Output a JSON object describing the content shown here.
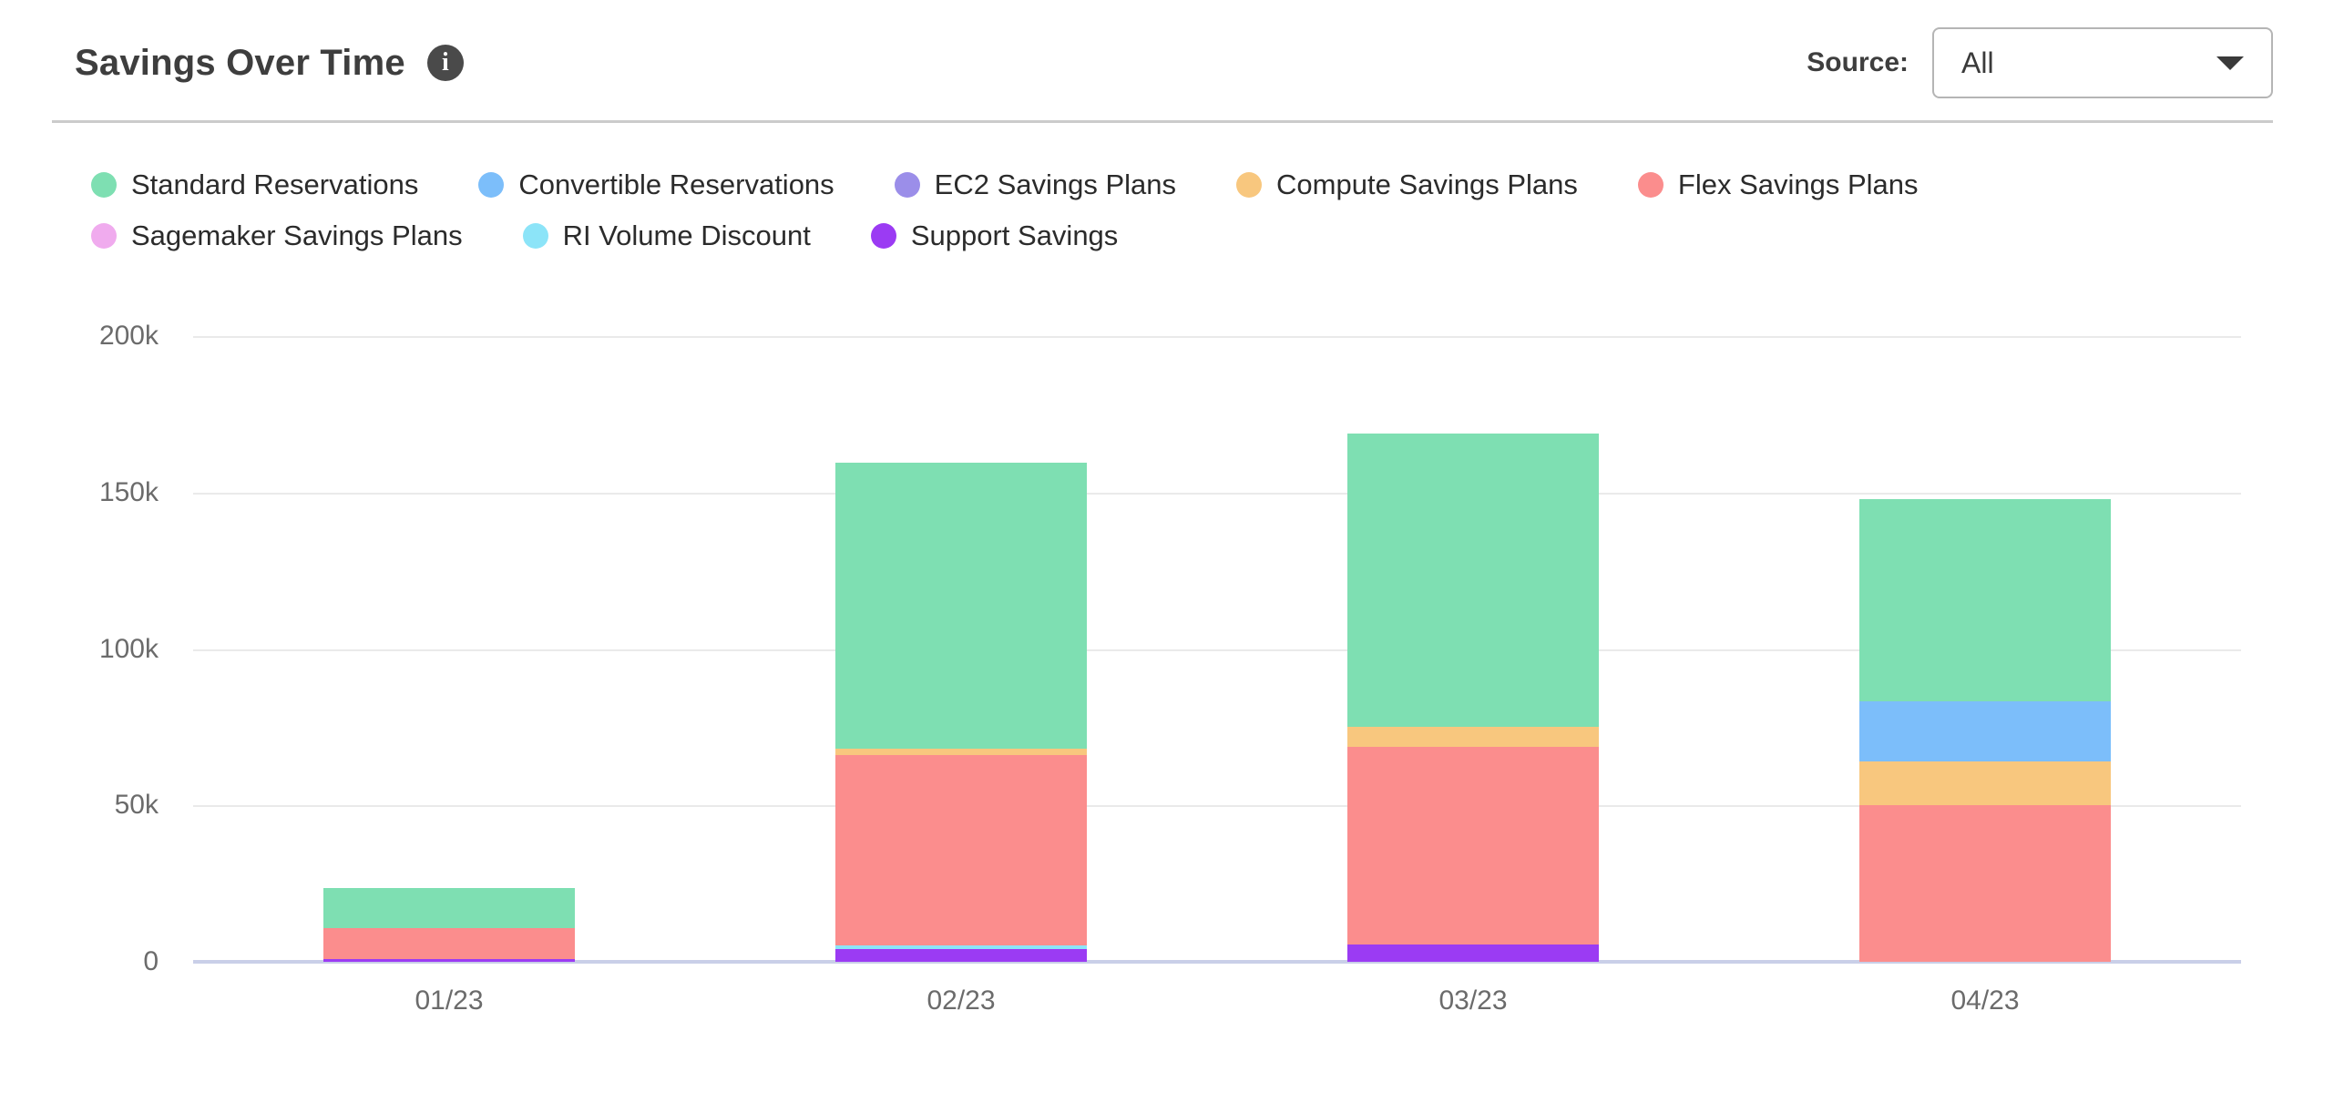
{
  "header": {
    "title": "Savings Over Time",
    "info_glyph": "i",
    "source_label": "Source:",
    "source_value": "All"
  },
  "chart_data": {
    "type": "bar",
    "subtype": "stacked-vertical",
    "title": "Savings Over Time",
    "categories": [
      "01/23",
      "02/23",
      "03/23",
      "04/23"
    ],
    "ylim": [
      0,
      200000
    ],
    "y_tick_labels": [
      "200k",
      "150k",
      "100k",
      "50k",
      "0"
    ],
    "grid": true,
    "legend_position": "top",
    "series": [
      {
        "name": "Standard Reservations",
        "color": "#7EDFB2",
        "values": [
          12800,
          91400,
          93800,
          64600
        ]
      },
      {
        "name": "Convertible Reservations",
        "color": "#7CBEFA",
        "values": [
          0,
          0,
          0,
          19300
        ]
      },
      {
        "name": "EC2 Savings Plans",
        "color": "#9B8EE9",
        "values": [
          0,
          0,
          0,
          0
        ]
      },
      {
        "name": "Compute Savings Plans",
        "color": "#F8C77E",
        "values": [
          0,
          2100,
          6300,
          14000
        ]
      },
      {
        "name": "Flex Savings Plans",
        "color": "#FB8D8D",
        "values": [
          9900,
          60900,
          63200,
          50000
        ]
      },
      {
        "name": "Sagemaker Savings Plans",
        "color": "#F0ABEE",
        "values": [
          0,
          0,
          0,
          0
        ]
      },
      {
        "name": "RI Volume Discount",
        "color": "#8CE4F8",
        "values": [
          0,
          1100,
          0,
          0
        ]
      },
      {
        "name": "Support Savings",
        "color": "#9B3BF3",
        "values": [
          1000,
          4100,
          5500,
          0
        ]
      }
    ],
    "stack_order_bottom_to_top": [
      "Support Savings",
      "RI Volume Discount",
      "Sagemaker Savings Plans",
      "Flex Savings Plans",
      "Compute Savings Plans",
      "EC2 Savings Plans",
      "Convertible Reservations",
      "Standard Reservations"
    ],
    "totals": [
      23700,
      159500,
      168800,
      147900
    ],
    "colors": {
      "gridline": "#EAEAEA",
      "baseline": "#C9CFE8",
      "tick_text": "#6B6B6B"
    }
  }
}
